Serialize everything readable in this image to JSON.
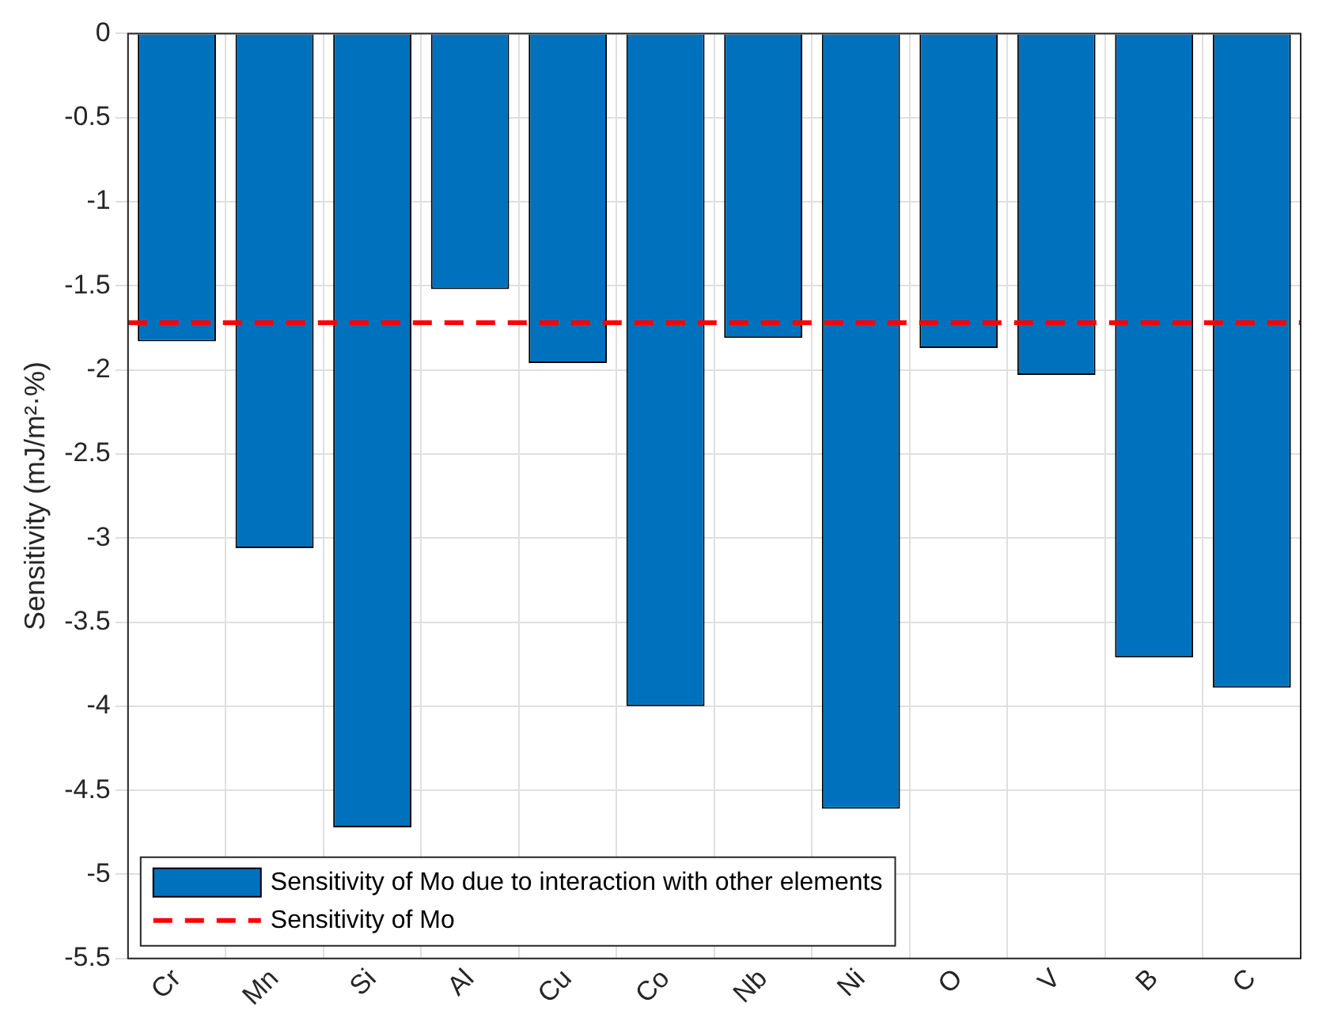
{
  "chart_data": {
    "type": "bar",
    "ylabel": "Sensitivity (mJ/m²·%)",
    "categories": [
      "Cr",
      "Mn",
      "Si",
      "Al",
      "Cu",
      "Co",
      "Nb",
      "Ni",
      "O",
      "V",
      "B",
      "C"
    ],
    "series": [
      {
        "name": "Sensitivity of Mo due to interaction with other elements",
        "color": "#0072bd",
        "values": [
          -1.83,
          -3.06,
          -4.72,
          -1.52,
          -1.96,
          -4.0,
          -1.81,
          -4.61,
          -1.87,
          -2.03,
          -3.71,
          -3.89
        ]
      }
    ],
    "ref_lines": [
      {
        "axis": "y",
        "value": -1.72,
        "label": "Sensitivity of Mo",
        "color": "#ff0000",
        "line_style": "dashed"
      }
    ],
    "ylim": [
      -5.5,
      0
    ],
    "yticks": [
      0,
      -0.5,
      -1,
      -1.5,
      -2,
      -2.5,
      -3,
      -3.5,
      -4,
      -4.5,
      -5,
      -5.5
    ],
    "grid": true,
    "legend": "bottom left"
  }
}
